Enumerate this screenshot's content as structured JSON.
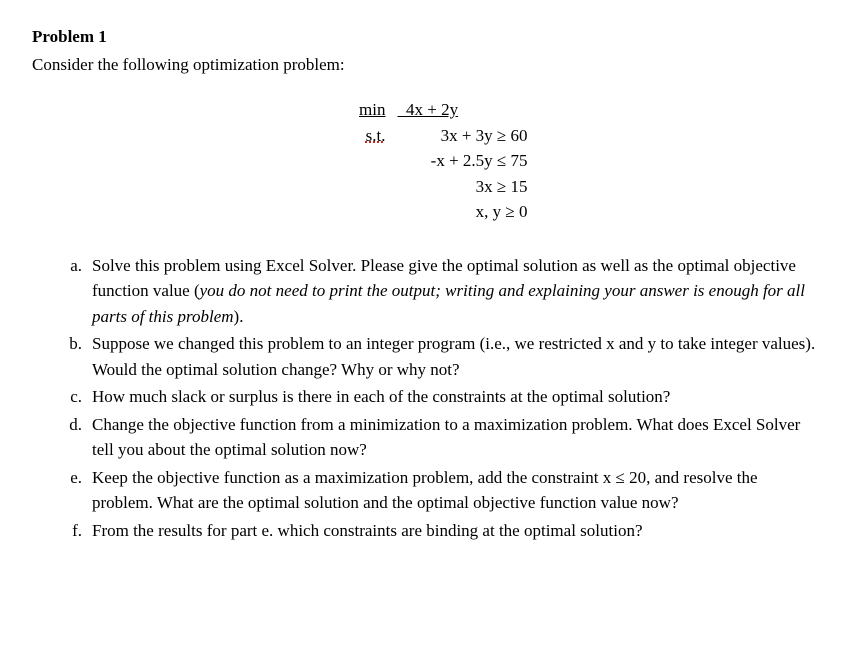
{
  "heading": "Problem 1",
  "intro": "Consider the following optimization problem:",
  "math": {
    "obj_prefix": "min",
    "obj_expr": "  4x + 2y",
    "st": "s.t.",
    "c1": "3x + 3y ≥ 60",
    "c2": "-x + 2.5y ≤ 75",
    "c3": "3x ≥ 15",
    "c4": "x, y ≥ 0",
    "underline_color": "#c00000"
  },
  "parts": {
    "a": {
      "label": "a.",
      "text_before_italic": "Solve this problem using Excel Solver. Please give the optimal solution as well as the optimal objective function value (",
      "italic": "you do not need to print the output; writing and explaining your answer is enough for all parts of this problem",
      "text_after_italic": ")."
    },
    "b": {
      "label": "b.",
      "text": "Suppose we changed this problem to an integer program (i.e., we restricted x and y to take integer values). Would the optimal solution change? Why or why not?"
    },
    "c": {
      "label": "c.",
      "text": "How much slack or surplus is there in each of the constraints at the optimal solution?"
    },
    "d": {
      "label": "d.",
      "text": "Change the objective function from a minimization to a maximization problem. What does Excel Solver tell you about the optimal solution now?"
    },
    "e": {
      "label": "e.",
      "text": "Keep the objective function as a maximization problem, add the constraint x ≤ 20, and resolve the problem. What are the optimal solution and the optimal objective function value now?"
    },
    "f": {
      "label": "f.",
      "text": "From the results for part e. which constraints are binding at the optimal solution?"
    }
  }
}
